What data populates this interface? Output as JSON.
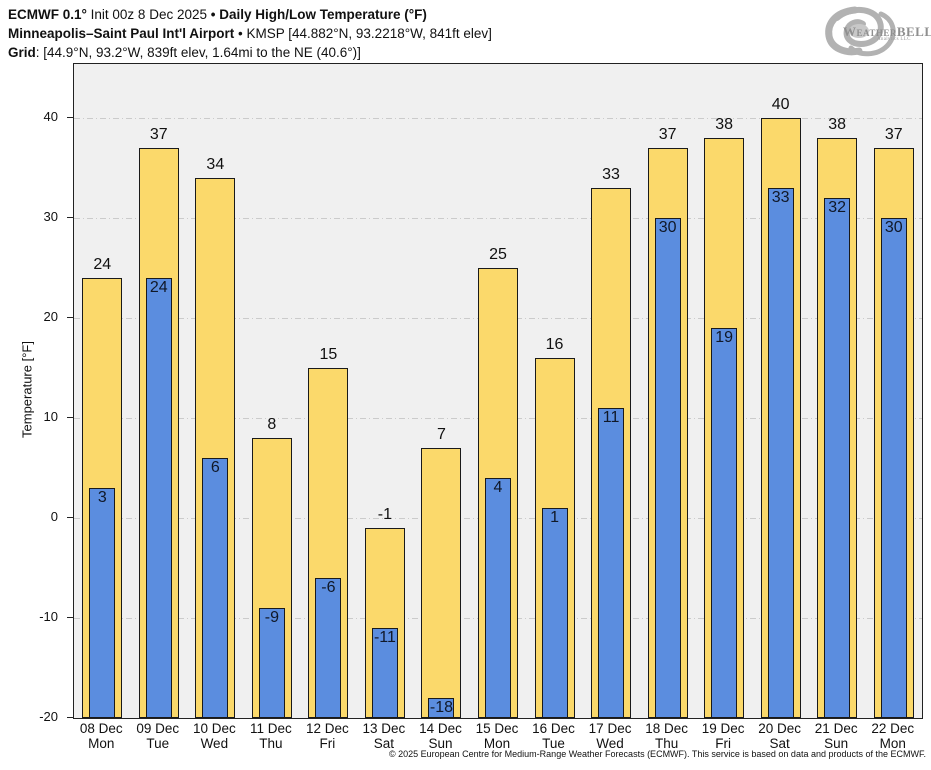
{
  "header": {
    "line1_bold1": "ECMWF 0.1°",
    "line1_reg": " Init 00z 8 Dec 2025 ",
    "line1_bold2": "• Daily High/Low Temperature (°F)",
    "line2_bold": "Minneapolis–Saint Paul Int'l Airport",
    "line2_reg": " • KMSP [44.882°N, 93.2218°W, 841ft elev]",
    "line3_bold": "Grid",
    "line3_reg": ": [44.9°N, 93.2°W, 839ft elev, 1.64mi to the NE (40.6°)]"
  },
  "logo": {
    "text": "WeatherBELL",
    "subtext": "Analytics LLC"
  },
  "chart_data": {
    "type": "bar",
    "title": "ECMWF 0.1° Init 00z 8 Dec 2025 • Daily High/Low Temperature (°F)",
    "subtitle": "Minneapolis–Saint Paul Int'l Airport • KMSP [44.882°N, 93.2218°W, 841ft elev]",
    "grid_point": "Grid: [44.9°N, 93.2°W, 839ft elev, 1.64mi to the NE (40.6°)]",
    "categories": [
      "08 Dec",
      "09 Dec",
      "10 Dec",
      "11 Dec",
      "12 Dec",
      "13 Dec",
      "14 Dec",
      "15 Dec",
      "16 Dec",
      "17 Dec",
      "18 Dec",
      "19 Dec",
      "20 Dec",
      "21 Dec",
      "22 Dec"
    ],
    "weekdays": [
      "Mon",
      "Tue",
      "Wed",
      "Thu",
      "Fri",
      "Sat",
      "Sun",
      "Mon",
      "Tue",
      "Wed",
      "Thu",
      "Fri",
      "Sat",
      "Sun",
      "Mon"
    ],
    "series": [
      {
        "name": "High",
        "color": "#fbd96b",
        "values": [
          24,
          37,
          34,
          8,
          15,
          -1,
          7,
          25,
          16,
          33,
          37,
          38,
          40,
          38,
          37
        ]
      },
      {
        "name": "Low",
        "color": "#5b8ddf",
        "values": [
          3,
          24,
          6,
          -9,
          -6,
          -11,
          -18,
          4,
          1,
          11,
          30,
          19,
          33,
          32,
          30
        ]
      }
    ],
    "xlabel": "",
    "ylabel": "Temperature [°F]",
    "ylim": [
      -20,
      45.4
    ],
    "yticks": [
      40,
      30,
      20,
      10,
      0,
      -10,
      -20
    ],
    "grid": "horizontal dash-dot",
    "legend": "none",
    "plot_background": "#f0f0f0",
    "bar_border_color": "#1a1a1a"
  },
  "footer": {
    "copyright": "© 2025 European Centre for Medium-Range Weather Forecasts (ECMWF). This service is based on data and products of the ECMWF."
  }
}
